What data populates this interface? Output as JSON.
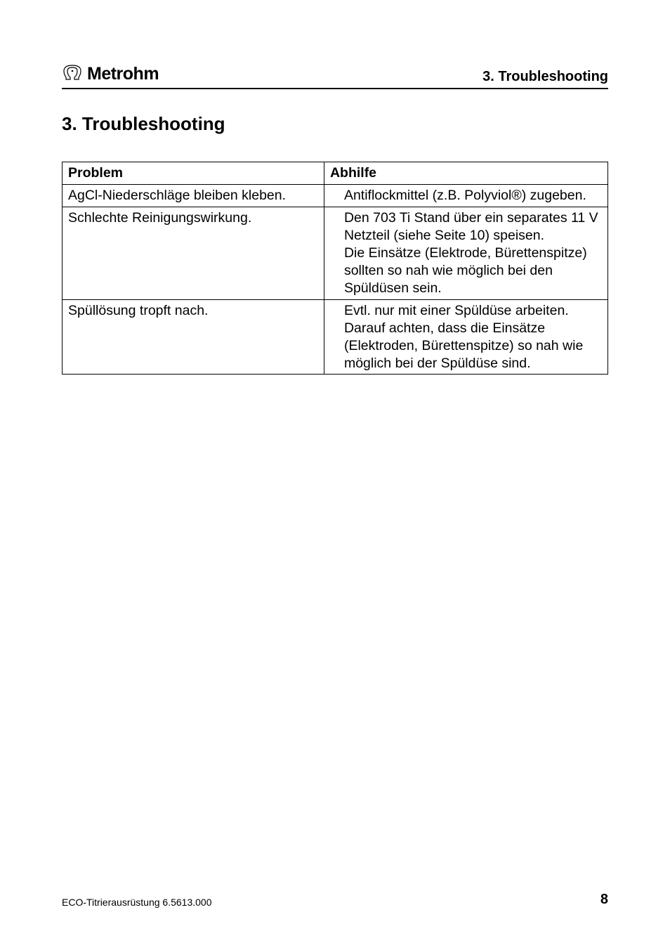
{
  "header": {
    "brand": "Metrohm",
    "running_title": "3. Troubleshooting"
  },
  "section": {
    "heading": "3. Troubleshooting"
  },
  "table": {
    "columns": [
      "Problem",
      "Abhilfe"
    ],
    "col_widths_pct": [
      48,
      52
    ],
    "rows": [
      {
        "problem": "AgCl-Niederschläge bleiben kleben.",
        "remedy": "Antiflockmittel (z.B. Polyviol®) zugeben."
      },
      {
        "problem": "Schlechte Reinigungswirkung.",
        "remedy": "Den 703 Ti Stand über ein separates 11 V Netzteil (siehe Seite 10) speisen.\nDie Einsätze (Elektrode, Bürettenspitze) sollten so nah wie möglich bei den Spüldüsen sein."
      },
      {
        "problem": "Spüllösung tropft nach.",
        "remedy": "Evtl. nur mit einer Spüldüse arbeiten. Darauf achten, dass die Einsätze (Elektroden, Bürettenspitze) so nah wie möglich bei der Spüldüse sind."
      }
    ]
  },
  "footer": {
    "left": "ECO-Titrierausrüstung 6.5613.000",
    "page_number": "8"
  },
  "style": {
    "page_bg": "#ffffff",
    "text_color": "#000000",
    "border_color": "#000000",
    "heading_fontsize": 26,
    "body_fontsize": 19.5,
    "header_title_fontsize": 20,
    "footer_left_fontsize": 14,
    "footer_page_fontsize": 20
  }
}
